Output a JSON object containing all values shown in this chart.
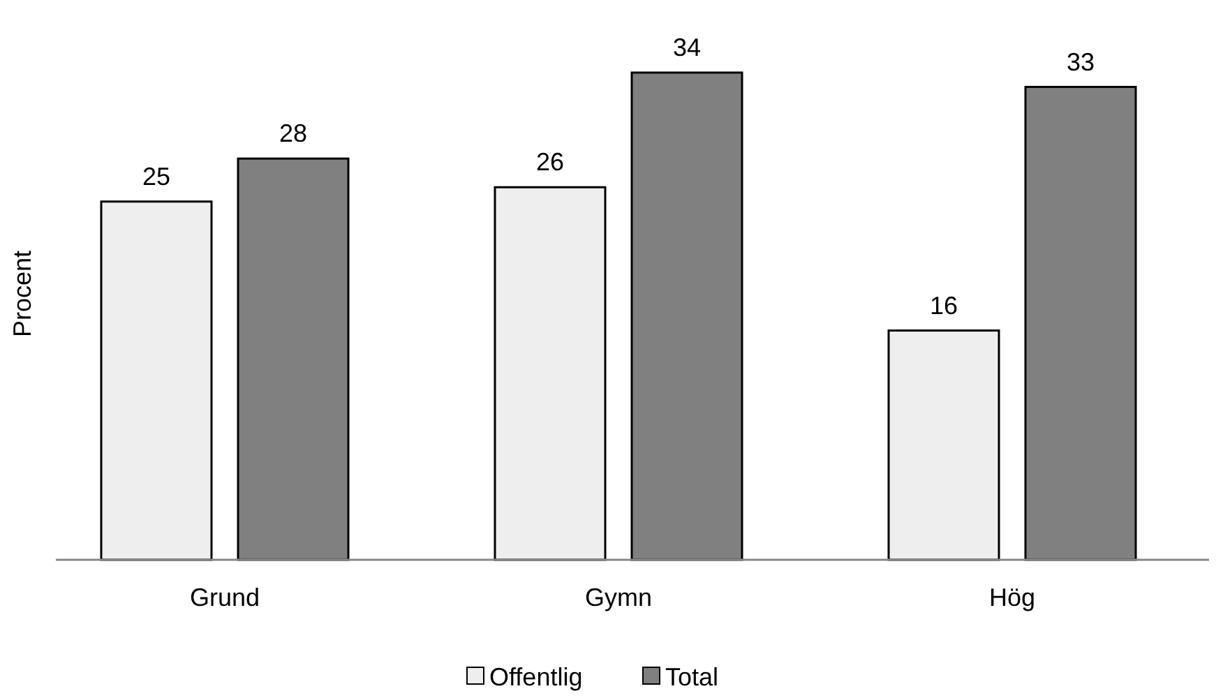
{
  "chart_data": {
    "type": "bar",
    "ylabel": "Procent",
    "categories": [
      "Grund",
      "Gymn",
      "Hög"
    ],
    "series": [
      {
        "name": "Offentlig",
        "color": "#eeeeee",
        "values": [
          25,
          26,
          16
        ]
      },
      {
        "name": "Total",
        "color": "#808080",
        "values": [
          28,
          34,
          33
        ]
      }
    ],
    "tick_labels": "x",
    "data_labels": true,
    "legend": "bottom",
    "grid": false
  }
}
